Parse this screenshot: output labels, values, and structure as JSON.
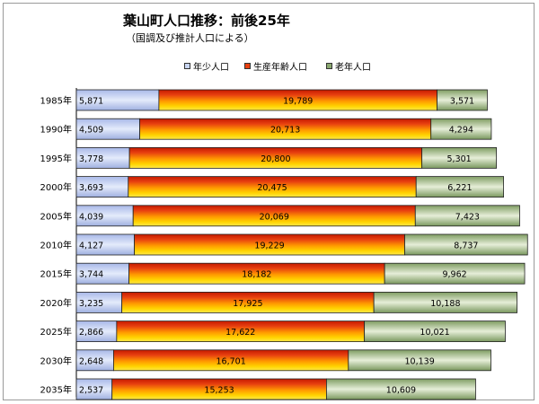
{
  "title": "葉山町人口推移：前後25年",
  "subtitle": "（国調及び推計人口による）",
  "legend": [
    {
      "label": "年少人口",
      "color": "#c9d6f3"
    },
    {
      "label": "生産年齢人口",
      "color": "#e84010"
    },
    {
      "label": "老年人口",
      "color": "#8aa870"
    }
  ],
  "chart_data": {
    "type": "bar",
    "orientation": "horizontal",
    "stacked": true,
    "categories": [
      "1985年",
      "1990年",
      "1995年",
      "2000年",
      "2005年",
      "2010年",
      "2015年",
      "2020年",
      "2025年",
      "2030年",
      "2035年"
    ],
    "series": [
      {
        "name": "年少人口",
        "values": [
          5871,
          4509,
          3778,
          3693,
          4039,
          4127,
          3744,
          3235,
          2866,
          2648,
          2537
        ]
      },
      {
        "name": "生産年齢人口",
        "values": [
          19789,
          20713,
          20800,
          20475,
          20069,
          19229,
          18182,
          17925,
          17622,
          16701,
          15253
        ]
      },
      {
        "name": "老年人口",
        "values": [
          3571,
          4294,
          5301,
          6221,
          7423,
          8737,
          9962,
          10188,
          10021,
          10139,
          10609
        ]
      }
    ],
    "value_labels": [
      [
        "5,871",
        "4,509",
        "3,778",
        "3,693",
        "4,039",
        "4,127",
        "3,744",
        "3,235",
        "2,866",
        "2,648",
        "2,537"
      ],
      [
        "19,789",
        "20,713",
        "20,800",
        "20,475",
        "20,069",
        "19,229",
        "18,182",
        "17,925",
        "17,622",
        "16,701",
        "15,253"
      ],
      [
        "3,571",
        "4,294",
        "5,301",
        "6,221",
        "7,423",
        "8,737",
        "9,962",
        "10,188",
        "10,021",
        "10,139",
        "10,609"
      ]
    ],
    "legend_position": "top"
  }
}
